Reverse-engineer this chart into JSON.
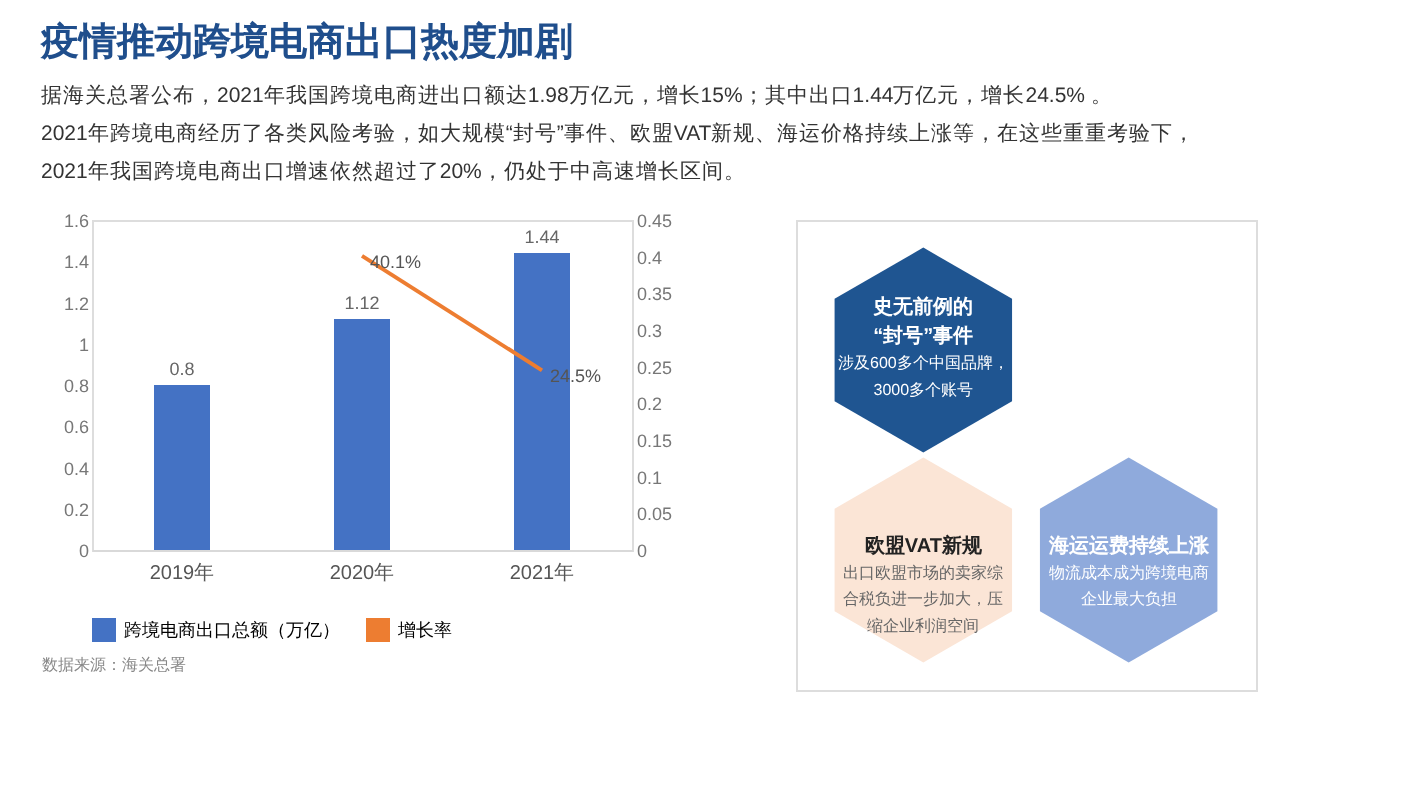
{
  "chart_data": [
    {
      "type": "bar",
      "title": "疫情推动跨境电商出口热度加剧",
      "subtitle": "据海关总署公布，2021年我国跨境电商进出口额达1.98万亿元，增长15%；其中出口1.44万亿元，增长24.5% 。\n2021年跨境电商经历了各类风险考验，如大规模“封号”事件、欧盟VAT新规、海运价格持续上涨等，在这些重重考验下，\n2021年我国跨境电商出口增速依然超过了20%，仍处于中高速增长区间。",
      "categories": [
        "2019年",
        "2020年",
        "2021年"
      ],
      "series": [
        {
          "name": "跨境电商出口总额（万亿）",
          "color": "#4472c4",
          "values": [
            0.8,
            1.12,
            1.44
          ]
        },
        {
          "name": "增长率",
          "color": "#ed7d31",
          "type": "line",
          "axis": "y2",
          "values": [
            null,
            0.401,
            0.245
          ],
          "value_labels": [
            null,
            "40.1%",
            "24.5%"
          ]
        }
      ],
      "data_labels": true,
      "ylim": [
        0,
        1.6
      ],
      "yticks": [
        0,
        0.2,
        0.4,
        0.6,
        0.8,
        1,
        1.2,
        1.4,
        1.6
      ],
      "y2lim": [
        0,
        0.45
      ],
      "y2ticks": [
        0,
        0.05,
        0.1,
        0.15,
        0.2,
        0.25,
        0.3,
        0.35,
        0.4,
        0.45
      ],
      "legend": "bottom",
      "grid": false,
      "annotations": [
        "数据来源：海关总署"
      ]
    },
    {
      "type": "other",
      "categories": [
        "史无前例的\n“封号”事件",
        "欧盟VAT新规",
        "海运运费持续上涨"
      ],
      "colors": [
        "#1f5591",
        "#fbe5d6",
        "#8faadc"
      ],
      "annotations": [
        "涉及600多个中国品牌，3000多个账号",
        "出口欧盟市场的卖家综合税负进一步加大，压缩企业利润空间",
        "物流成本成为跨境电商企业最大负担"
      ]
    }
  ]
}
